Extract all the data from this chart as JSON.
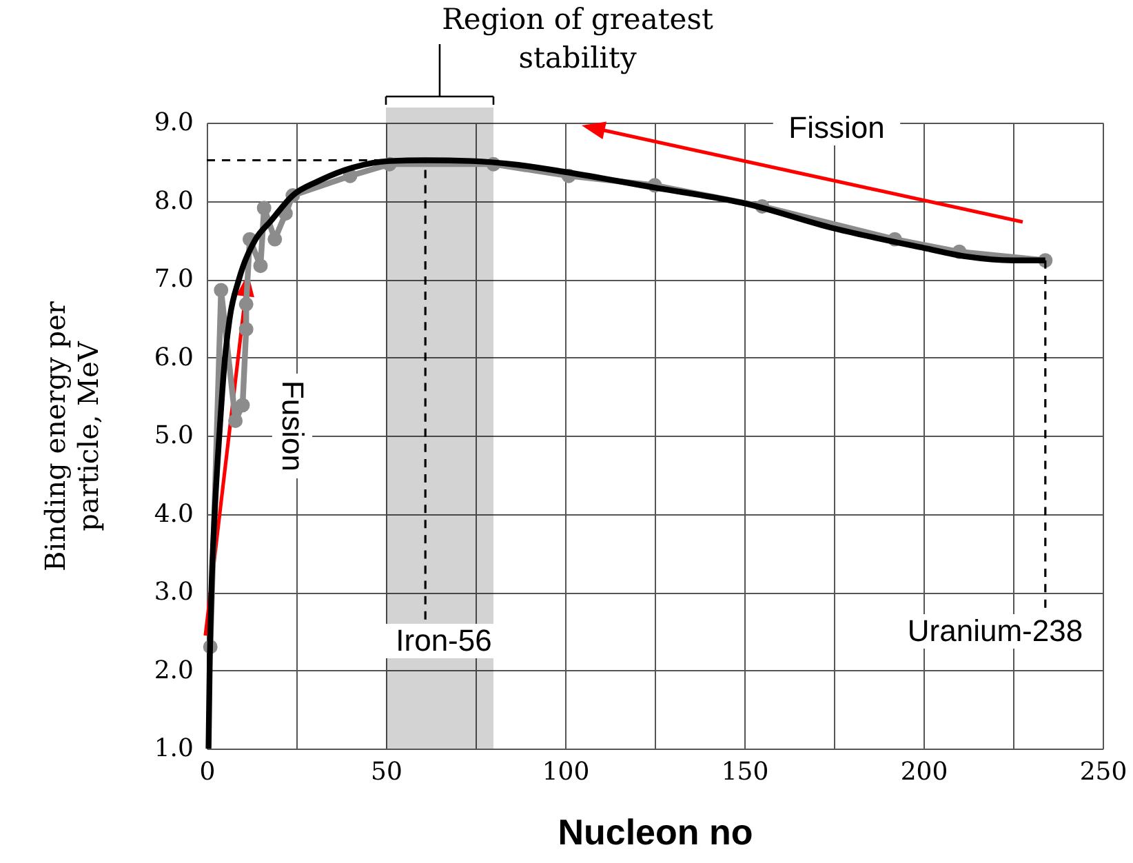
{
  "chart_data": {
    "type": "line",
    "xlabel": "Nucleon no",
    "ylabel": "Binding energy per particle, MeV",
    "xlim": [
      0,
      250
    ],
    "ylim": [
      1,
      9
    ],
    "xticks": [
      0,
      {
        "value": 25,
        "label": null
      },
      50,
      {
        "value": 75,
        "label": null
      },
      100,
      {
        "value": 125,
        "label": null
      },
      150,
      {
        "value": 175,
        "label": null
      },
      200,
      {
        "value": 225,
        "label": null
      },
      250
    ],
    "yticks": [
      {
        "value": 1,
        "label": "1.0"
      },
      {
        "value": 2,
        "label": "2.0"
      },
      {
        "value": 3,
        "label": "3.0"
      },
      {
        "value": 4,
        "label": "4.0"
      },
      {
        "value": 5,
        "label": "5.0"
      },
      {
        "value": 6,
        "label": "6.0"
      },
      {
        "value": 7,
        "label": "7.0"
      },
      {
        "value": 8,
        "label": "8.0"
      },
      {
        "value": 9,
        "label": "9.0"
      }
    ],
    "grid": true,
    "bands": [
      {
        "axis": "x",
        "from": 50,
        "to": 80,
        "label": "Region of greatest stability",
        "color": "#d3d3d3"
      }
    ],
    "series": [
      {
        "color": "#8c8c8c",
        "marker": "circle",
        "x": [
          1,
          4,
          8,
          10,
          11,
          11,
          12,
          15,
          16,
          19,
          22,
          24,
          40,
          51,
          80,
          101,
          125,
          155,
          192,
          210,
          234
        ],
        "values": [
          2.3,
          6.86,
          5.19,
          5.39,
          6.36,
          6.68,
          7.51,
          7.17,
          7.91,
          7.51,
          7.84,
          8.07,
          8.32,
          8.47,
          8.47,
          8.32,
          8.2,
          7.93,
          7.51,
          7.35,
          7.24
        ]
      },
      {
        "color": "#000000",
        "x": [
          0.5,
          0.8,
          1.3,
          2.2,
          3.5,
          5.1,
          6.4,
          9,
          13.5,
          18,
          24,
          31,
          41,
          51,
          61,
          74,
          87,
          100,
          125,
          150,
          175,
          200,
          212,
          225,
          234
        ],
        "values": [
          1.0,
          2.0,
          3.0,
          4.0,
          5.0,
          6.0,
          6.5,
          7.0,
          7.5,
          7.75,
          8.07,
          8.25,
          8.43,
          8.51,
          8.52,
          8.51,
          8.46,
          8.37,
          8.17,
          7.97,
          7.65,
          7.4,
          7.29,
          7.24,
          7.24
        ]
      },
      {
        "color": "#000000",
        "line_style": "dashed",
        "x": [
          0,
          61,
          61
        ],
        "values": [
          8.52,
          8.52,
          2.65
        ]
      },
      {
        "color": "#000000",
        "line_style": "dashed",
        "x": [
          234,
          234
        ],
        "values": [
          7.24,
          2.8
        ]
      }
    ],
    "annotations": [
      "Fusion",
      "Fission",
      "Iron-56",
      "Uranium-238"
    ]
  }
}
